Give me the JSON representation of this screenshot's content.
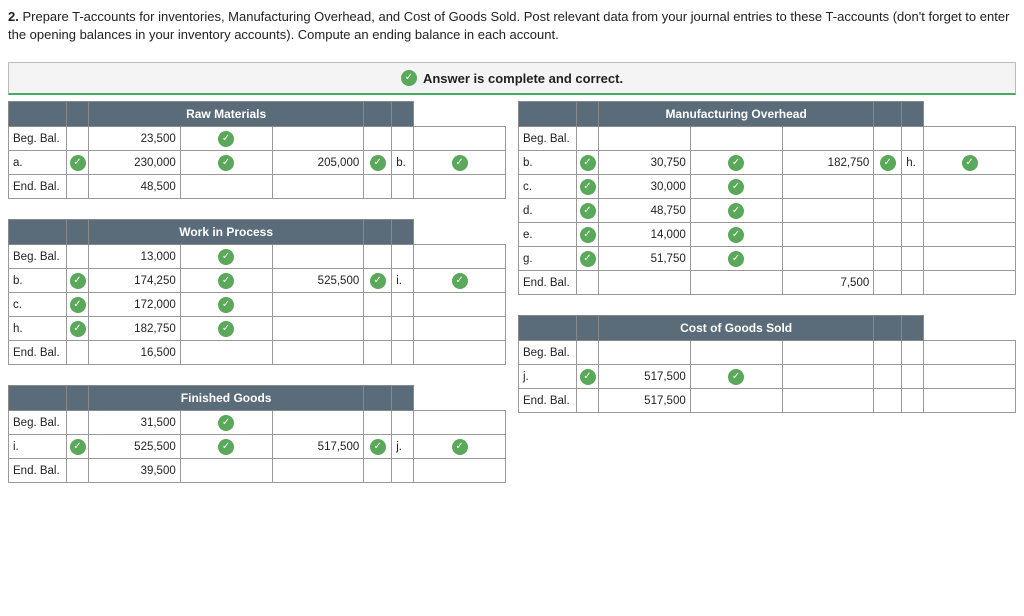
{
  "question": {
    "num": "2.",
    "text": "Prepare T-accounts for inventories, Manufacturing Overhead, and Cost of Goods Sold. Post relevant data from your journal entries to these T-accounts (don't forget to enter the opening balances in your inventory accounts). Compute an ending balance in each account."
  },
  "banner": "Answer is complete and correct.",
  "accounts": {
    "raw": {
      "title": "Raw Materials",
      "rows": [
        {
          "l": "Beg. Bal.",
          "lc": false,
          "v1": "23,500",
          "v1c": true,
          "v2": "",
          "v2c": false,
          "r": "",
          "rc": false
        },
        {
          "l": "a.",
          "lc": true,
          "v1": "230,000",
          "v1c": true,
          "v2": "205,000",
          "v2c": true,
          "r": "b.",
          "rc": true
        },
        {
          "l": "End. Bal.",
          "lc": false,
          "v1": "48,500",
          "v1c": false,
          "v2": "",
          "v2c": false,
          "r": "",
          "rc": false
        }
      ]
    },
    "wip": {
      "title": "Work in Process",
      "rows": [
        {
          "l": "Beg. Bal.",
          "lc": false,
          "v1": "13,000",
          "v1c": true,
          "v2": "",
          "v2c": false,
          "r": "",
          "rc": false
        },
        {
          "l": "b.",
          "lc": true,
          "v1": "174,250",
          "v1c": true,
          "v2": "525,500",
          "v2c": true,
          "r": "i.",
          "rc": true
        },
        {
          "l": "c.",
          "lc": true,
          "v1": "172,000",
          "v1c": true,
          "v2": "",
          "v2c": false,
          "r": "",
          "rc": false
        },
        {
          "l": "h.",
          "lc": true,
          "v1": "182,750",
          "v1c": true,
          "v2": "",
          "v2c": false,
          "r": "",
          "rc": false
        },
        {
          "l": "End. Bal.",
          "lc": false,
          "v1": "16,500",
          "v1c": false,
          "v2": "",
          "v2c": false,
          "r": "",
          "rc": false
        }
      ]
    },
    "fg": {
      "title": "Finished Goods",
      "rows": [
        {
          "l": "Beg. Bal.",
          "lc": false,
          "v1": "31,500",
          "v1c": true,
          "v2": "",
          "v2c": false,
          "r": "",
          "rc": false
        },
        {
          "l": "i.",
          "lc": true,
          "v1": "525,500",
          "v1c": true,
          "v2": "517,500",
          "v2c": true,
          "r": "j.",
          "rc": true
        },
        {
          "l": "End. Bal.",
          "lc": false,
          "v1": "39,500",
          "v1c": false,
          "v2": "",
          "v2c": false,
          "r": "",
          "rc": false
        }
      ]
    },
    "moh": {
      "title": "Manufacturing Overhead",
      "rows": [
        {
          "l": "Beg. Bal.",
          "lc": false,
          "v1": "",
          "v1c": false,
          "v2": "",
          "v2c": false,
          "r": "",
          "rc": false
        },
        {
          "l": "b.",
          "lc": true,
          "v1": "30,750",
          "v1c": true,
          "v2": "182,750",
          "v2c": true,
          "r": "h.",
          "rc": true
        },
        {
          "l": "c.",
          "lc": true,
          "v1": "30,000",
          "v1c": true,
          "v2": "",
          "v2c": false,
          "r": "",
          "rc": false
        },
        {
          "l": "d.",
          "lc": true,
          "v1": "48,750",
          "v1c": true,
          "v2": "",
          "v2c": false,
          "r": "",
          "rc": false
        },
        {
          "l": "e.",
          "lc": true,
          "v1": "14,000",
          "v1c": true,
          "v2": "",
          "v2c": false,
          "r": "",
          "rc": false
        },
        {
          "l": "g.",
          "lc": true,
          "v1": "51,750",
          "v1c": true,
          "v2": "",
          "v2c": false,
          "r": "",
          "rc": false
        },
        {
          "l": "End. Bal.",
          "lc": false,
          "v1": "",
          "v1c": false,
          "v2": "7,500",
          "v2c": false,
          "r": "",
          "rc": false
        }
      ]
    },
    "cogs": {
      "title": "Cost of Goods Sold",
      "rows": [
        {
          "l": "Beg. Bal.",
          "lc": false,
          "v1": "",
          "v1c": false,
          "v2": "",
          "v2c": false,
          "r": "",
          "rc": false
        },
        {
          "l": "j.",
          "lc": true,
          "v1": "517,500",
          "v1c": true,
          "v2": "",
          "v2c": false,
          "r": "",
          "rc": false
        },
        {
          "l": "End. Bal.",
          "lc": false,
          "v1": "517,500",
          "v1c": false,
          "v2": "",
          "v2c": false,
          "r": "",
          "rc": false
        }
      ]
    }
  }
}
